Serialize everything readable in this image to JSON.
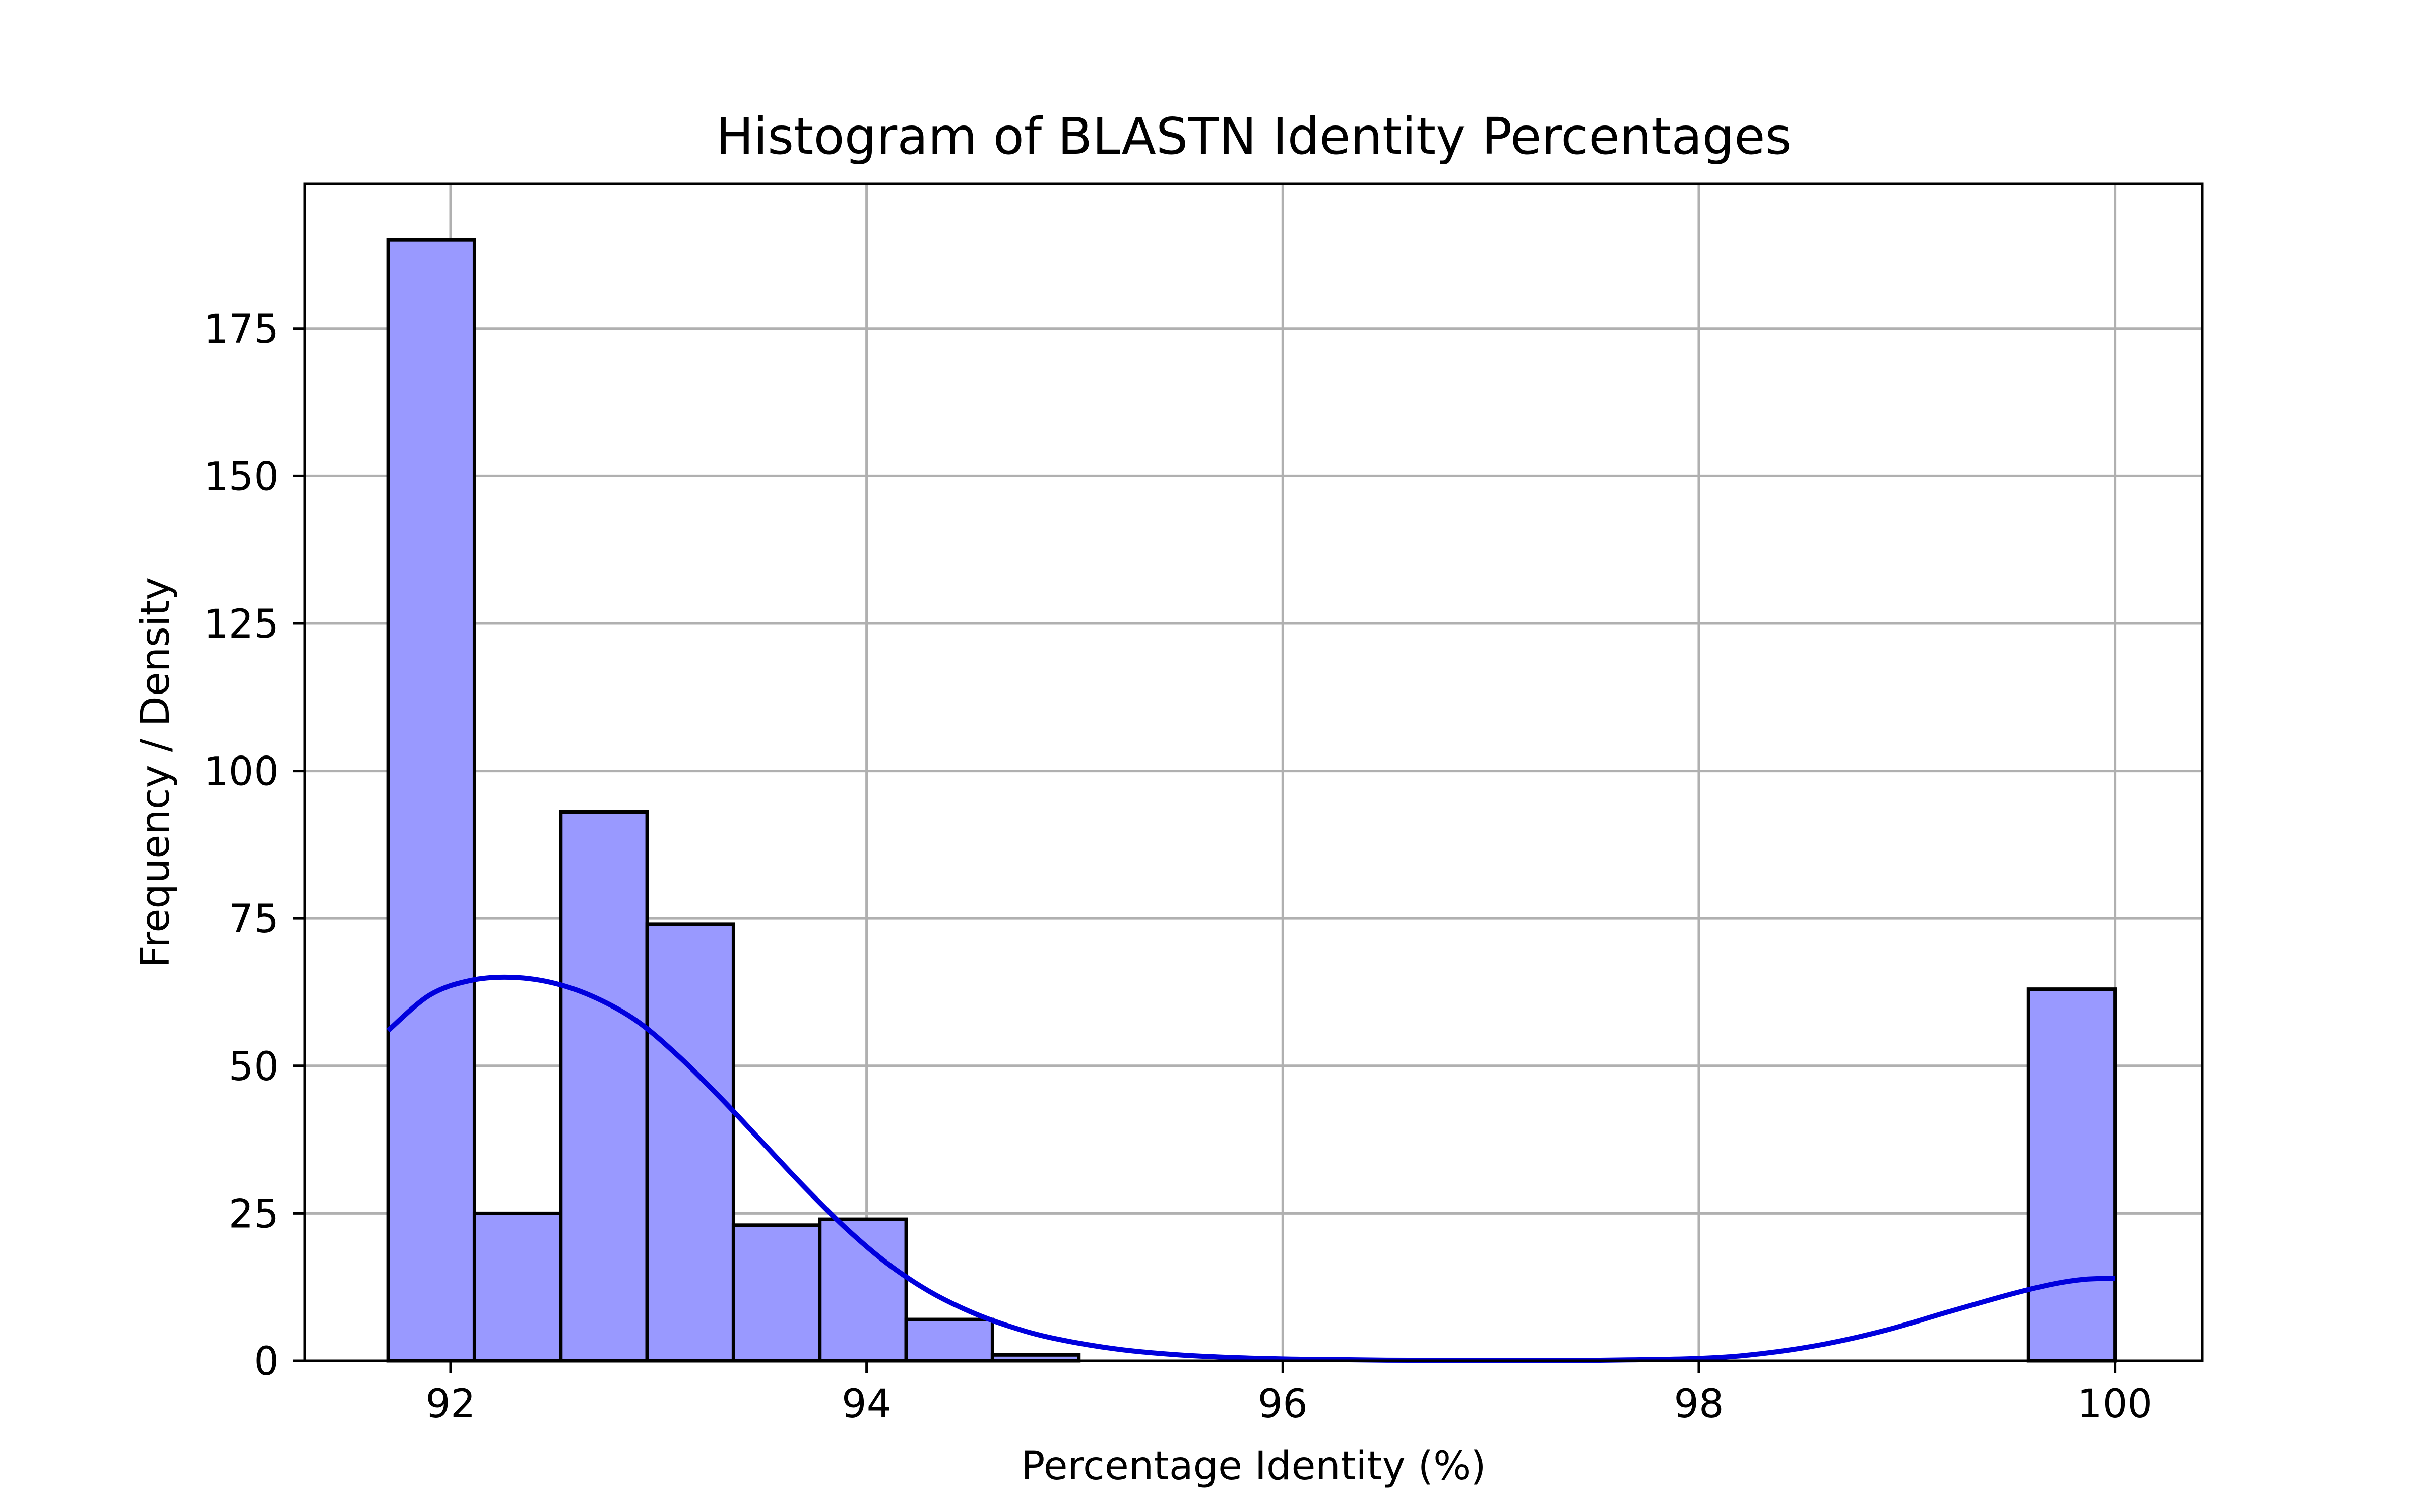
{
  "chart_data": {
    "type": "bar",
    "title": "Histogram of BLASTN Identity Percentages",
    "xlabel": "Percentage Identity (%)",
    "ylabel": "Frequency / Density",
    "xlim": [
      91.3,
      100.42
    ],
    "ylim": [
      0,
      199.5
    ],
    "x_ticks": [
      92,
      94,
      96,
      98,
      100
    ],
    "x_tick_labels": [
      "92",
      "94",
      "96",
      "98",
      "100"
    ],
    "y_ticks": [
      0,
      25,
      50,
      75,
      100,
      125,
      150,
      175
    ],
    "y_tick_labels": [
      "0",
      "25",
      "50",
      "75",
      "100",
      "125",
      "150",
      "175"
    ],
    "grid": true,
    "bins": [
      {
        "x0": 91.7,
        "x1": 92.115,
        "count": 190
      },
      {
        "x0": 92.115,
        "x1": 92.53,
        "count": 25
      },
      {
        "x0": 92.53,
        "x1": 92.945,
        "count": 93
      },
      {
        "x0": 92.945,
        "x1": 93.36,
        "count": 74
      },
      {
        "x0": 93.36,
        "x1": 93.775,
        "count": 23
      },
      {
        "x0": 93.775,
        "x1": 94.19,
        "count": 24
      },
      {
        "x0": 94.19,
        "x1": 94.605,
        "count": 7
      },
      {
        "x0": 94.605,
        "x1": 95.02,
        "count": 1
      },
      {
        "x0": 99.585,
        "x1": 100.0,
        "count": 63
      }
    ],
    "kde": {
      "x": [
        91.7,
        91.9,
        92.1,
        92.3,
        92.5,
        92.7,
        92.9,
        93.1,
        93.3,
        93.5,
        93.7,
        93.9,
        94.1,
        94.3,
        94.5,
        94.7,
        94.9,
        95.2,
        95.5,
        95.8,
        96.1,
        96.5,
        97.0,
        97.5,
        98.0,
        98.3,
        98.6,
        98.9,
        99.2,
        99.5,
        99.7,
        99.85,
        100.0
      ],
      "y": [
        56,
        62,
        64.5,
        65,
        64,
        61.5,
        57.5,
        51.5,
        44.5,
        37,
        29.5,
        22.5,
        16.5,
        11.8,
        8.3,
        5.7,
        3.8,
        2.0,
        1.0,
        0.5,
        0.25,
        0.1,
        0.05,
        0.08,
        0.4,
        1.2,
        2.8,
        5.2,
        8.3,
        11.3,
        13.0,
        13.8,
        14.0
      ]
    },
    "colors": {
      "bar_fill": "#9999ff",
      "bar_edge": "#000000",
      "kde_line": "#0000dd",
      "grid": "#b0b0b0"
    }
  }
}
